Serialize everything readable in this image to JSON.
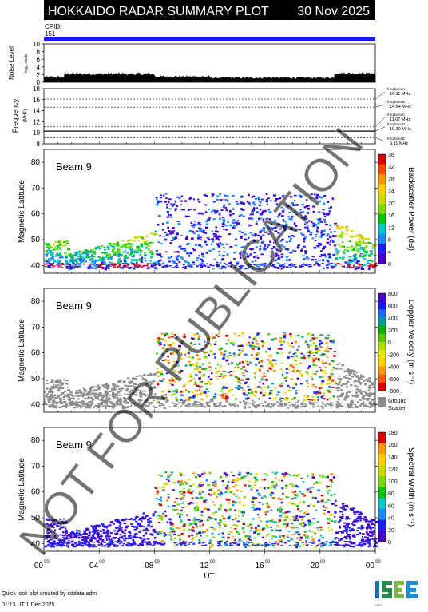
{
  "header": {
    "title": "HOKKAIDO RADAR SUMMARY PLOT",
    "date": "30 Nov 2025",
    "cpid_label": "CPID:",
    "cpid_value": "151"
  },
  "noise": {
    "ylabel": "Noise Level",
    "ylabel_sub": "log₁₀ scale",
    "yticks": [
      "10",
      "8",
      "6",
      "4",
      "2",
      "0"
    ]
  },
  "frequency": {
    "ylabel": "Frequency",
    "ylabel_sub": "(MHz)",
    "yticks": [
      "18",
      "16",
      "14",
      "12",
      "10",
      "8"
    ],
    "bands": [
      {
        "name": "freq bandA",
        "value": "16.11 MHz",
        "freq": 16.11
      },
      {
        "name": "freq bandB",
        "value": "14.64 MHz",
        "freq": 14.64
      },
      {
        "name": "freq bandC",
        "value": "11.07 MHz",
        "freq": 11.07
      },
      {
        "name": "freq bandD",
        "value": "10.30 MHz",
        "freq": 10.3
      },
      {
        "name": "freq bandE",
        "value": "9.11 MHz",
        "freq": 9.11
      }
    ]
  },
  "panels": [
    {
      "beam": "Beam  9",
      "ylabel": "Magnetic Latitude",
      "colorbar_label": "Backscatter Power (dB)",
      "cb_ticks": [
        "36",
        "32",
        "28",
        "24",
        "20",
        "16",
        "12",
        "8",
        "4",
        "0"
      ],
      "cb_type": "power"
    },
    {
      "beam": "Beam  9",
      "ylabel": "Magnetic Latitude",
      "colorbar_label": "Doppler Velocity (m s⁻¹)",
      "cb_ticks": [
        "800",
        "600",
        "400",
        "200",
        "0",
        "-200",
        "-400",
        "-600",
        "-800"
      ],
      "cb_type": "velocity",
      "ground_label": "Ground",
      "scatter_label": "Scatter"
    },
    {
      "beam": "Beam  9",
      "ylabel": "Magnetic Latitude",
      "colorbar_label": "Spectral Width (m s⁻¹)",
      "cb_ticks": [
        "180",
        "160",
        "140",
        "120",
        "100",
        "80",
        "60",
        "40",
        "20",
        "0"
      ],
      "cb_type": "width"
    }
  ],
  "lat_ticks": [
    "80",
    "70",
    "60",
    "50",
    "40"
  ],
  "x_ticks": [
    {
      "h": "00",
      "m": "00"
    },
    {
      "h": "04",
      "m": "00"
    },
    {
      "h": "08",
      "m": "00"
    },
    {
      "h": "12",
      "m": "00"
    },
    {
      "h": "16",
      "m": "00"
    },
    {
      "h": "20",
      "m": "00"
    },
    {
      "h": "00",
      "m": "00"
    }
  ],
  "xlabel": "UT",
  "watermark": "NOT FOR PUBLICATION",
  "footer": {
    "credit": "Quick look plot created by sddata.adm",
    "timestamp": "01:13 UT  1 Dec 2025"
  },
  "logo": {
    "text": "ISEE",
    "colors": [
      "#2a8a4a",
      "#1f6fb5",
      "#7ab648",
      "#1b8fcf"
    ]
  },
  "colors": {
    "cpid_bar": "#1a1aff"
  },
  "chart_data": [
    {
      "type": "area",
      "title": "Noise Level",
      "ylim": [
        0,
        10
      ],
      "xlim_hours": [
        0,
        24
      ]
    },
    {
      "type": "line",
      "title": "Frequency",
      "ylim": [
        8,
        18
      ],
      "xlim_hours": [
        0,
        24
      ]
    },
    {
      "type": "heatmap",
      "title": "Backscatter Power",
      "ylim": [
        37,
        85
      ],
      "xlim_hours": [
        0,
        24
      ],
      "clim": [
        0,
        36
      ]
    },
    {
      "type": "heatmap",
      "title": "Doppler Velocity",
      "ylim": [
        37,
        85
      ],
      "xlim_hours": [
        0,
        24
      ],
      "clim": [
        -800,
        800
      ]
    },
    {
      "type": "heatmap",
      "title": "Spectral Width",
      "ylim": [
        37,
        85
      ],
      "xlim_hours": [
        0,
        24
      ],
      "clim": [
        0,
        180
      ]
    }
  ]
}
